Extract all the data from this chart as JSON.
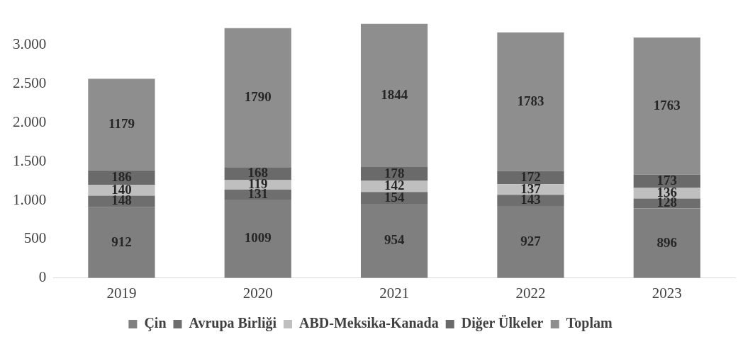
{
  "chart_data": {
    "type": "bar",
    "stacked": true,
    "categories": [
      "2019",
      "2020",
      "2021",
      "2022",
      "2023"
    ],
    "series": [
      {
        "name": "Çin",
        "color": "#7f7f7f",
        "values": [
          912,
          1009,
          954,
          927,
          896
        ]
      },
      {
        "name": "Avrupa Birliği",
        "color": "#6e6e6e",
        "values": [
          148,
          131,
          154,
          143,
          128
        ]
      },
      {
        "name": "ABD-Meksika-Kanada",
        "color": "#bfbfbf",
        "values": [
          140,
          119,
          142,
          137,
          136
        ]
      },
      {
        "name": "Diğer Ülkeler",
        "color": "#6a6a6a",
        "values": [
          186,
          168,
          178,
          172,
          173
        ]
      },
      {
        "name": "Toplam",
        "color": "#8e8e8e",
        "values": [
          1179,
          1790,
          1844,
          1783,
          1763
        ]
      }
    ],
    "ylim": [
      0,
      3300
    ],
    "yticks": [
      0,
      500,
      {
        "value": 1000,
        "label": "1.000"
      },
      {
        "value": 1500,
        "label": "1.500"
      },
      {
        "value": 2000,
        "label": "2.000"
      },
      {
        "value": 2500,
        "label": "2.500"
      },
      {
        "value": 3000,
        "label": "3.000"
      }
    ],
    "grid": false,
    "legend": "bottom",
    "data_labels": true
  }
}
